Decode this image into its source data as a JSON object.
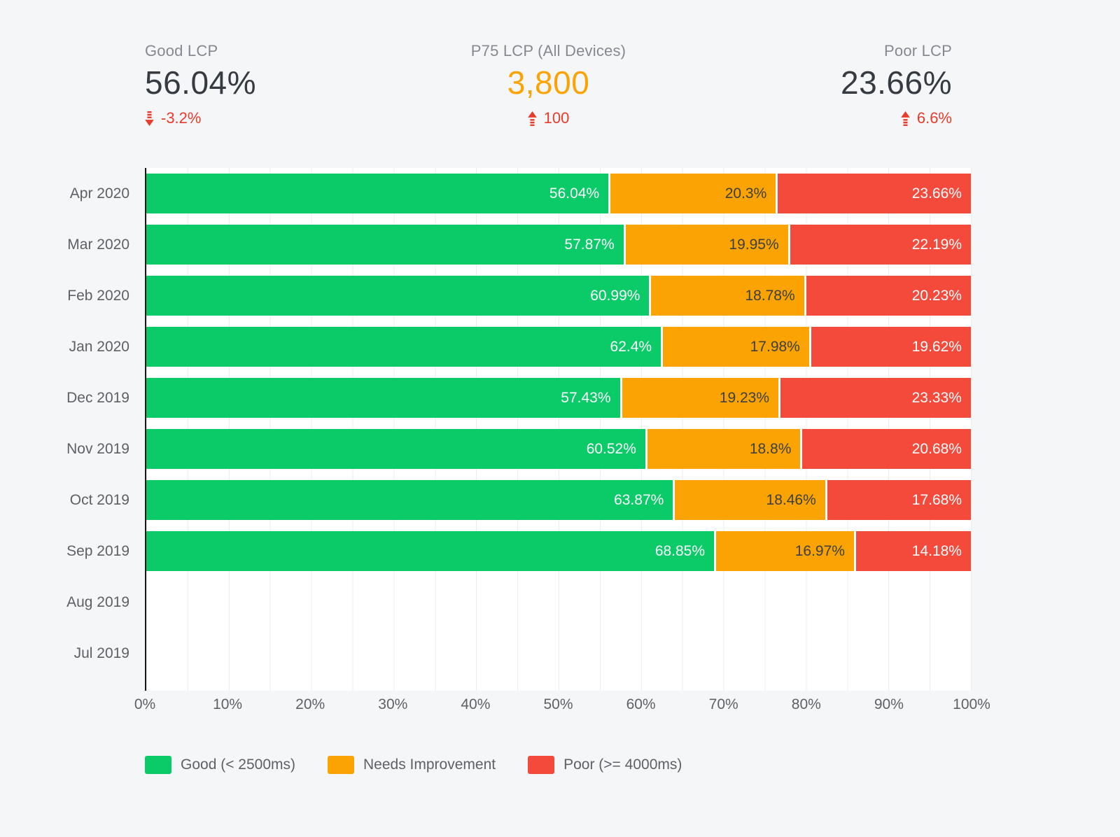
{
  "colors": {
    "background": "#f5f6f8",
    "plot_background": "#ffffff",
    "gridline": "#ebecef",
    "axis_line": "#17191c",
    "good_green": "#0acb68",
    "needs_improvement_orange": "#fba302",
    "poor_red": "#f44a3c",
    "trend_red": "#e93b2b",
    "kpi_value_dark": "#363b42",
    "muted_text": "#5d6166"
  },
  "kpis": [
    {
      "label": "Good LCP",
      "value": "56.04%",
      "change": "-3.2%",
      "trend": "down"
    },
    {
      "label": "P75 LCP (All Devices)",
      "value": "3,800",
      "change": "100",
      "trend": "up",
      "value_color": "#fba302"
    },
    {
      "label": "Poor LCP",
      "value": "23.66%",
      "change": "6.6%",
      "trend": "up"
    }
  ],
  "chart_data": {
    "type": "bar",
    "stacked": true,
    "orientation": "horizontal",
    "grid": {
      "vertical_lines_every_percent": 5,
      "tick_labels_every_percent": 10
    },
    "xlim": [
      0,
      100
    ],
    "x_ticks": [
      "0%",
      "10%",
      "20%",
      "30%",
      "40%",
      "50%",
      "60%",
      "70%",
      "80%",
      "90%",
      "100%"
    ],
    "categories": [
      "Apr 2020",
      "Mar 2020",
      "Feb 2020",
      "Jan 2020",
      "Dec 2019",
      "Nov 2019",
      "Oct 2019",
      "Sep 2019",
      "Aug 2019",
      "Jul 2019"
    ],
    "series": [
      {
        "name": "Good (< 2500ms)",
        "key": "good",
        "color": "#0acb68",
        "label_color": "#ffffff",
        "values": [
          56.04,
          57.87,
          60.99,
          62.4,
          57.43,
          60.52,
          63.87,
          68.85,
          null,
          null
        ],
        "labels": [
          "56.04%",
          "57.87%",
          "60.99%",
          "62.4%",
          "57.43%",
          "60.52%",
          "63.87%",
          "68.85%",
          null,
          null
        ]
      },
      {
        "name": "Needs Improvement",
        "key": "needs-improvement",
        "color": "#fba302",
        "label_color": "#3c4043",
        "values": [
          20.3,
          19.95,
          18.78,
          17.98,
          19.23,
          18.8,
          18.46,
          16.97,
          null,
          null
        ],
        "labels": [
          "20.3%",
          "19.95%",
          "18.78%",
          "17.98%",
          "19.23%",
          "18.8%",
          "18.46%",
          "16.97%",
          null,
          null
        ]
      },
      {
        "name": "Poor (>= 4000ms)",
        "key": "poor",
        "color": "#f44a3c",
        "label_color": "#ffffff",
        "values": [
          23.66,
          22.19,
          20.23,
          19.62,
          23.33,
          20.68,
          17.68,
          14.18,
          null,
          null
        ],
        "labels": [
          "23.66%",
          "22.19%",
          "20.23%",
          "19.62%",
          "23.33%",
          "20.68%",
          "17.68%",
          "14.18%",
          null,
          null
        ]
      }
    ],
    "legend_position": "bottom-left"
  }
}
